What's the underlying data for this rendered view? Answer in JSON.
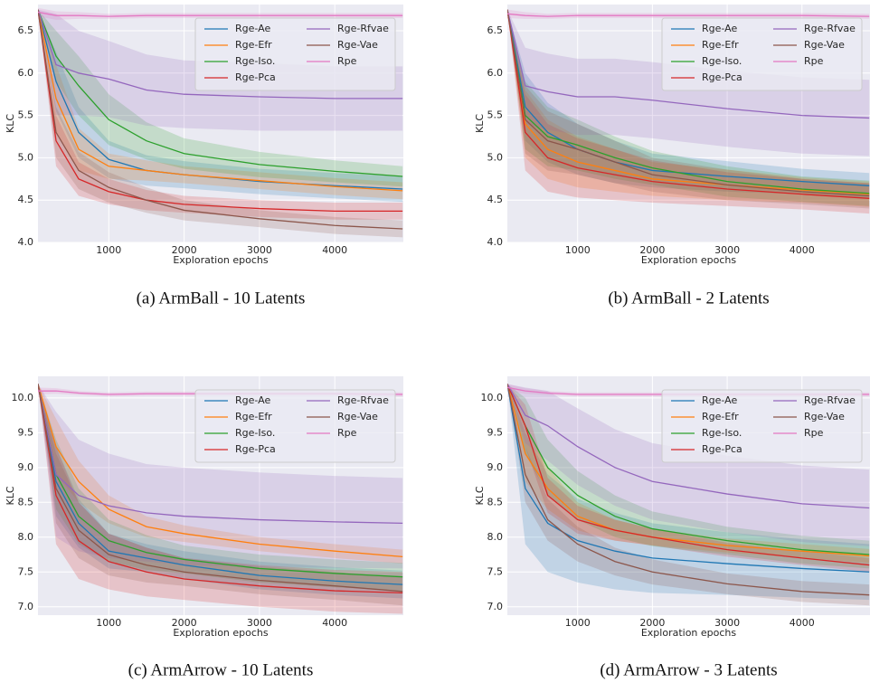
{
  "chart_data": [
    {
      "type": "line",
      "caption": "(a) ArmBall - 10 Latents",
      "xlabel": "Exploration epochs",
      "ylabel": "KLC",
      "x": [
        60,
        300,
        600,
        1000,
        1500,
        2000,
        3000,
        4000,
        4900
      ],
      "xlim": [
        60,
        4910
      ],
      "xticks": [
        1000,
        2000,
        3000,
        4000
      ],
      "ylim": [
        4.0,
        6.81
      ],
      "yticks": [
        {
          "value": 4,
          "label": "4.0"
        },
        4.5,
        {
          "value": 5,
          "label": "5.0"
        },
        5.5,
        {
          "value": 6,
          "label": "6.0"
        },
        6.5
      ],
      "grid": true,
      "legend": "upper right",
      "series": [
        {
          "name": "Rge-Ae",
          "color": "#1f77b4",
          "values": [
            6.75,
            5.9,
            5.3,
            4.98,
            4.85,
            4.8,
            4.72,
            4.67,
            4.63
          ],
          "errors": [
            0,
            0.35,
            0.3,
            0.22,
            0.18,
            0.16,
            0.15,
            0.15,
            0.15
          ]
        },
        {
          "name": "Rge-Efr",
          "color": "#ff7f0e",
          "values": [
            6.75,
            5.7,
            5.1,
            4.9,
            4.85,
            4.8,
            4.73,
            4.66,
            4.61
          ],
          "errors": [
            0,
            0.4,
            0.25,
            0.15,
            0.12,
            0.1,
            0.1,
            0.1,
            0.1
          ]
        },
        {
          "name": "Rge-Iso.",
          "color": "#2ca02c",
          "values": [
            6.75,
            6.2,
            5.85,
            5.45,
            5.2,
            5.05,
            4.92,
            4.84,
            4.78
          ],
          "errors": [
            0,
            0.3,
            0.35,
            0.3,
            0.22,
            0.18,
            0.15,
            0.13,
            0.12
          ]
        },
        {
          "name": "Rge-Pca",
          "color": "#d62728",
          "values": [
            6.75,
            5.2,
            4.75,
            4.6,
            4.5,
            4.45,
            4.4,
            4.37,
            4.37
          ],
          "errors": [
            0,
            0.3,
            0.2,
            0.15,
            0.12,
            0.1,
            0.1,
            0.1,
            0.1
          ]
        },
        {
          "name": "Rge-Rfvae",
          "color": "#9467bd",
          "values": [
            6.75,
            6.1,
            6.0,
            5.93,
            5.8,
            5.75,
            5.72,
            5.7,
            5.7
          ],
          "errors": [
            0,
            0.6,
            0.5,
            0.45,
            0.42,
            0.4,
            0.4,
            0.38,
            0.38
          ]
        },
        {
          "name": "Rge-Vae",
          "color": "#8c564b",
          "values": [
            6.75,
            5.3,
            4.85,
            4.65,
            4.5,
            4.38,
            4.28,
            4.2,
            4.16
          ],
          "errors": [
            0,
            0.3,
            0.22,
            0.18,
            0.15,
            0.12,
            0.1,
            0.1,
            0.1
          ]
        },
        {
          "name": "Rpe",
          "color": "#e377c2",
          "values": [
            6.72,
            6.68,
            6.68,
            6.67,
            6.68,
            6.68,
            6.68,
            6.68,
            6.68
          ],
          "errors": [
            0.05,
            0.05,
            0.04,
            0.03,
            0.03,
            0.03,
            0.03,
            0.03,
            0.03
          ]
        }
      ]
    },
    {
      "type": "line",
      "caption": "(b) ArmBall - 2 Latents",
      "xlabel": "Exploration epochs",
      "ylabel": "KLC",
      "x": [
        60,
        300,
        600,
        1000,
        1500,
        2000,
        3000,
        4000,
        4900
      ],
      "xlim": [
        60,
        4910
      ],
      "xticks": [
        1000,
        2000,
        3000,
        4000
      ],
      "ylim": [
        4.0,
        6.81
      ],
      "yticks": [
        {
          "value": 4,
          "label": "4.0"
        },
        4.5,
        {
          "value": 5,
          "label": "5.0"
        },
        5.5,
        {
          "value": 6,
          "label": "6.0"
        },
        6.5
      ],
      "grid": true,
      "legend": "upper right",
      "series": [
        {
          "name": "Rge-Ae",
          "color": "#1f77b4",
          "values": [
            6.75,
            5.6,
            5.3,
            5.1,
            4.95,
            4.85,
            4.78,
            4.72,
            4.67
          ],
          "errors": [
            0,
            0.4,
            0.35,
            0.3,
            0.25,
            0.2,
            0.18,
            0.15,
            0.15
          ]
        },
        {
          "name": "Rge-Efr",
          "color": "#ff7f0e",
          "values": [
            6.75,
            5.4,
            5.1,
            4.95,
            4.85,
            4.75,
            4.68,
            4.62,
            4.57
          ],
          "errors": [
            0,
            0.4,
            0.35,
            0.3,
            0.25,
            0.2,
            0.18,
            0.15,
            0.15
          ]
        },
        {
          "name": "Rge-Iso.",
          "color": "#2ca02c",
          "values": [
            6.75,
            5.5,
            5.25,
            5.15,
            5.0,
            4.88,
            4.72,
            4.63,
            4.58
          ],
          "errors": [
            0,
            0.4,
            0.35,
            0.3,
            0.25,
            0.2,
            0.18,
            0.15,
            0.15
          ]
        },
        {
          "name": "Rge-Pca",
          "color": "#d62728",
          "values": [
            6.75,
            5.3,
            5.0,
            4.88,
            4.8,
            4.72,
            4.63,
            4.57,
            4.52
          ],
          "errors": [
            0,
            0.45,
            0.4,
            0.35,
            0.3,
            0.25,
            0.2,
            0.18,
            0.18
          ]
        },
        {
          "name": "Rge-Rfvae",
          "color": "#9467bd",
          "values": [
            6.75,
            5.85,
            5.78,
            5.72,
            5.72,
            5.68,
            5.58,
            5.5,
            5.47
          ],
          "errors": [
            0,
            0.45,
            0.45,
            0.45,
            0.45,
            0.45,
            0.45,
            0.45,
            0.45
          ]
        },
        {
          "name": "Rge-Vae",
          "color": "#8c564b",
          "values": [
            6.75,
            5.45,
            5.2,
            5.1,
            4.95,
            4.8,
            4.68,
            4.6,
            4.55
          ],
          "errors": [
            0,
            0.4,
            0.35,
            0.3,
            0.25,
            0.2,
            0.18,
            0.15,
            0.15
          ]
        },
        {
          "name": "Rpe",
          "color": "#e377c2",
          "values": [
            6.7,
            6.68,
            6.67,
            6.68,
            6.68,
            6.68,
            6.68,
            6.68,
            6.67
          ],
          "errors": [
            0.05,
            0.04,
            0.03,
            0.03,
            0.03,
            0.03,
            0.03,
            0.03,
            0.03
          ]
        }
      ]
    },
    {
      "type": "line",
      "caption": "(c) ArmArrow - 10 Latents",
      "xlabel": "Exploration epochs",
      "ylabel": "KLC",
      "x": [
        60,
        300,
        600,
        1000,
        1500,
        2000,
        3000,
        4000,
        4900
      ],
      "xlim": [
        60,
        4910
      ],
      "xticks": [
        1000,
        2000,
        3000,
        4000
      ],
      "ylim": [
        6.88,
        10.31
      ],
      "yticks": [
        {
          "value": 7,
          "label": "7.0"
        },
        7.5,
        {
          "value": 8,
          "label": "8.0"
        },
        8.5,
        {
          "value": 9,
          "label": "9.0"
        },
        9.5,
        {
          "value": 10,
          "label": "10.0"
        }
      ],
      "grid": true,
      "legend": "upper right",
      "series": [
        {
          "name": "Rge-Ae",
          "color": "#1f77b4",
          "values": [
            10.2,
            8.8,
            8.2,
            7.8,
            7.7,
            7.6,
            7.45,
            7.37,
            7.32
          ],
          "errors": [
            0,
            0.5,
            0.35,
            0.25,
            0.2,
            0.2,
            0.2,
            0.2,
            0.2
          ]
        },
        {
          "name": "Rge-Efr",
          "color": "#ff7f0e",
          "values": [
            10.2,
            9.3,
            8.8,
            8.4,
            8.15,
            8.05,
            7.9,
            7.8,
            7.72
          ],
          "errors": [
            0,
            0.4,
            0.3,
            0.2,
            0.15,
            0.12,
            0.1,
            0.1,
            0.1
          ]
        },
        {
          "name": "Rge-Iso.",
          "color": "#2ca02c",
          "values": [
            10.2,
            8.9,
            8.3,
            7.95,
            7.78,
            7.68,
            7.55,
            7.48,
            7.43
          ],
          "errors": [
            0,
            0.5,
            0.4,
            0.3,
            0.25,
            0.2,
            0.2,
            0.2,
            0.2
          ]
        },
        {
          "name": "Rge-Pca",
          "color": "#d62728",
          "values": [
            10.2,
            8.6,
            7.95,
            7.65,
            7.5,
            7.4,
            7.3,
            7.23,
            7.2
          ],
          "errors": [
            0,
            0.7,
            0.55,
            0.4,
            0.35,
            0.3,
            0.3,
            0.3,
            0.3
          ]
        },
        {
          "name": "Rge-Rfvae",
          "color": "#9467bd",
          "values": [
            10.2,
            8.9,
            8.6,
            8.45,
            8.35,
            8.3,
            8.25,
            8.22,
            8.2
          ],
          "errors": [
            0,
            0.9,
            0.8,
            0.75,
            0.7,
            0.7,
            0.68,
            0.66,
            0.65
          ]
        },
        {
          "name": "Rge-Vae",
          "color": "#8c564b",
          "values": [
            10.2,
            8.7,
            8.1,
            7.75,
            7.6,
            7.5,
            7.38,
            7.3,
            7.22
          ],
          "errors": [
            0,
            0.5,
            0.4,
            0.3,
            0.25,
            0.2,
            0.2,
            0.2,
            0.2
          ]
        },
        {
          "name": "Rpe",
          "color": "#e377c2",
          "values": [
            10.1,
            10.1,
            10.07,
            10.05,
            10.06,
            10.06,
            10.06,
            10.06,
            10.05
          ],
          "errors": [
            0.05,
            0.04,
            0.03,
            0.03,
            0.03,
            0.03,
            0.03,
            0.03,
            0.03
          ]
        }
      ]
    },
    {
      "type": "line",
      "caption": "(d) ArmArrow - 3 Latents",
      "xlabel": "Exploration epochs",
      "ylabel": "KLC",
      "x": [
        60,
        300,
        600,
        1000,
        1500,
        2000,
        3000,
        4000,
        4900
      ],
      "xlim": [
        60,
        4910
      ],
      "xticks": [
        1000,
        2000,
        3000,
        4000
      ],
      "ylim": [
        6.88,
        10.31
      ],
      "yticks": [
        {
          "value": 7,
          "label": "7.0"
        },
        7.5,
        {
          "value": 8,
          "label": "8.0"
        },
        8.5,
        {
          "value": 9,
          "label": "9.0"
        },
        9.5,
        {
          "value": 10,
          "label": "10.0"
        }
      ],
      "grid": true,
      "legend": "upper right",
      "series": [
        {
          "name": "Rge-Ae",
          "color": "#1f77b4",
          "values": [
            10.2,
            8.7,
            8.2,
            7.95,
            7.8,
            7.7,
            7.62,
            7.55,
            7.5
          ],
          "errors": [
            0,
            0.8,
            0.7,
            0.6,
            0.55,
            0.5,
            0.45,
            0.42,
            0.4
          ]
        },
        {
          "name": "Rge-Efr",
          "color": "#ff7f0e",
          "values": [
            10.2,
            9.2,
            8.7,
            8.3,
            8.1,
            8.0,
            7.88,
            7.8,
            7.73
          ],
          "errors": [
            0,
            0.4,
            0.3,
            0.2,
            0.15,
            0.12,
            0.1,
            0.1,
            0.1
          ]
        },
        {
          "name": "Rge-Iso.",
          "color": "#2ca02c",
          "values": [
            10.2,
            9.6,
            9.0,
            8.6,
            8.3,
            8.12,
            7.95,
            7.82,
            7.75
          ],
          "errors": [
            0,
            0.4,
            0.4,
            0.35,
            0.3,
            0.25,
            0.2,
            0.2,
            0.2
          ]
        },
        {
          "name": "Rge-Pca",
          "color": "#d62728",
          "values": [
            10.2,
            9.6,
            8.6,
            8.25,
            8.1,
            8.0,
            7.82,
            7.7,
            7.6
          ],
          "errors": [
            0,
            0.3,
            0.25,
            0.2,
            0.15,
            0.12,
            0.1,
            0.1,
            0.1
          ]
        },
        {
          "name": "Rge-Rfvae",
          "color": "#9467bd",
          "values": [
            10.2,
            9.75,
            9.6,
            9.3,
            9.0,
            8.8,
            8.62,
            8.48,
            8.42
          ],
          "errors": [
            0,
            0.4,
            0.5,
            0.55,
            0.55,
            0.55,
            0.55,
            0.55,
            0.55
          ]
        },
        {
          "name": "Rge-Vae",
          "color": "#8c564b",
          "values": [
            10.2,
            8.9,
            8.25,
            7.9,
            7.65,
            7.5,
            7.33,
            7.22,
            7.17
          ],
          "errors": [
            0,
            0.4,
            0.3,
            0.25,
            0.2,
            0.18,
            0.15,
            0.15,
            0.15
          ]
        },
        {
          "name": "Rpe",
          "color": "#e377c2",
          "values": [
            10.15,
            10.1,
            10.07,
            10.05,
            10.05,
            10.05,
            10.05,
            10.05,
            10.05
          ],
          "errors": [
            0.05,
            0.04,
            0.03,
            0.03,
            0.03,
            0.03,
            0.03,
            0.03,
            0.03
          ]
        }
      ]
    }
  ]
}
